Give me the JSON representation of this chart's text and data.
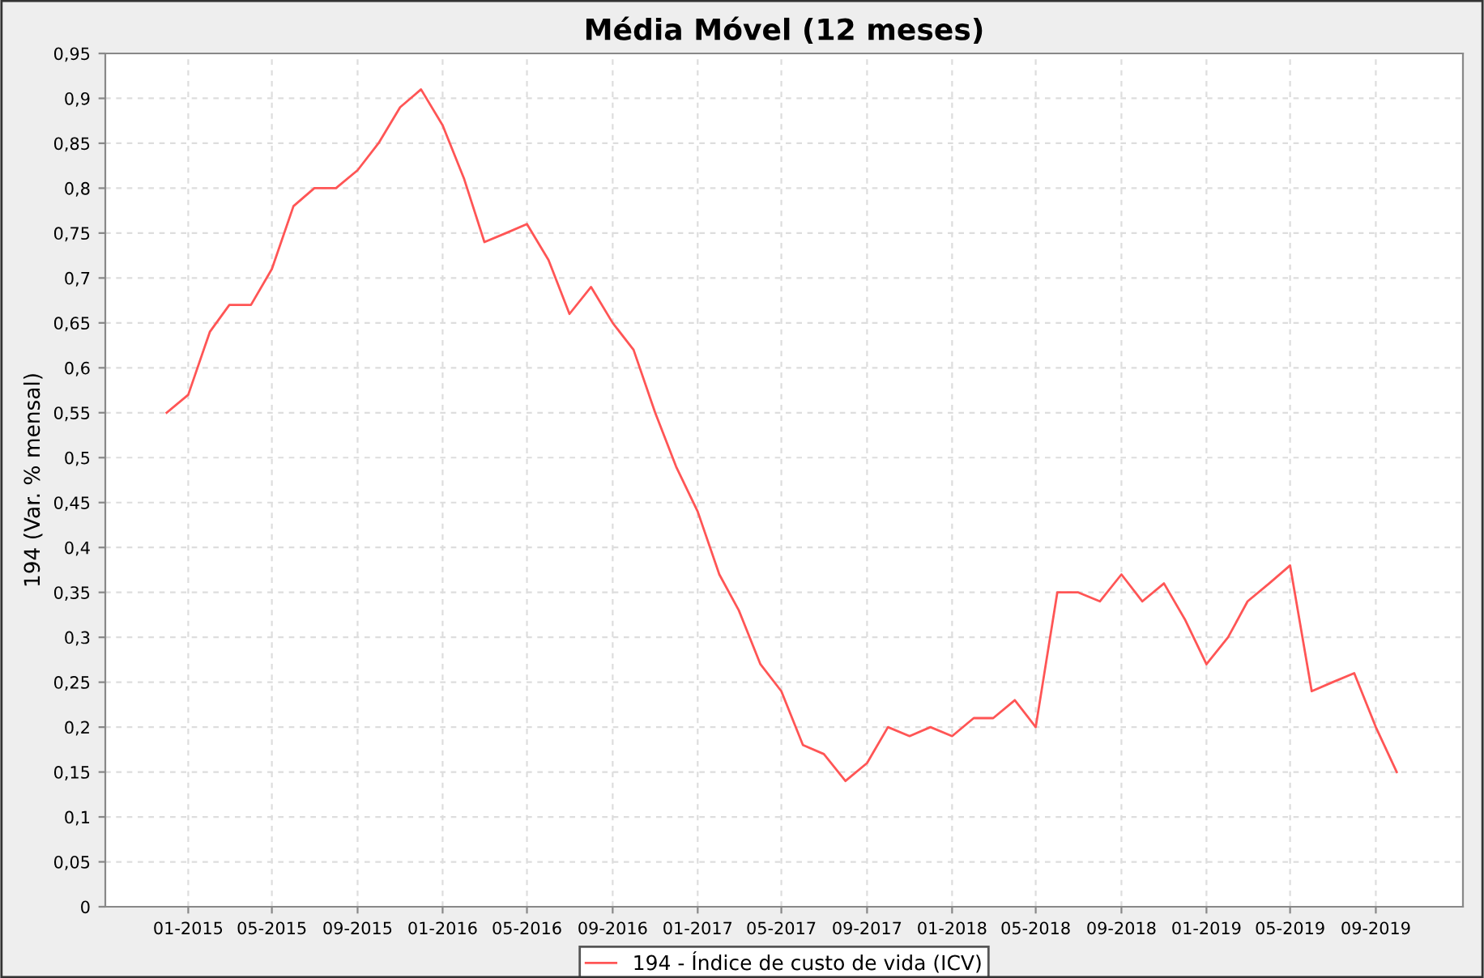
{
  "chart_data": {
    "type": "line",
    "title": "Média Móvel (12 meses)",
    "ylabel": "194 (Var. % mensal)",
    "x": [
      "2014-12",
      "2015-01",
      "2015-02",
      "2015-03",
      "2015-04",
      "2015-05",
      "2015-06",
      "2015-07",
      "2015-08",
      "2015-09",
      "2015-10",
      "2015-11",
      "2015-12",
      "2016-01",
      "2016-02",
      "2016-03",
      "2016-04",
      "2016-05",
      "2016-06",
      "2016-07",
      "2016-08",
      "2016-09",
      "2016-10",
      "2016-11",
      "2016-12",
      "2017-01",
      "2017-02",
      "2017-03",
      "2017-04",
      "2017-05",
      "2017-06",
      "2017-07",
      "2017-08",
      "2017-09",
      "2017-10",
      "2017-11",
      "2017-12",
      "2018-01",
      "2018-02",
      "2018-03",
      "2018-04",
      "2018-05",
      "2018-06",
      "2018-07",
      "2018-08",
      "2018-09",
      "2018-10",
      "2018-11",
      "2018-12",
      "2019-01",
      "2019-02",
      "2019-03",
      "2019-04",
      "2019-05",
      "2019-06",
      "2019-07",
      "2019-08",
      "2019-09",
      "2019-10"
    ],
    "series": [
      {
        "name": "194 - Índice de custo de vida (ICV)",
        "color": "#ff5555",
        "values": [
          0.55,
          0.57,
          0.64,
          0.67,
          0.67,
          0.71,
          0.78,
          0.8,
          0.8,
          0.82,
          0.85,
          0.89,
          0.91,
          0.87,
          0.81,
          0.74,
          0.75,
          0.76,
          0.72,
          0.66,
          0.69,
          0.65,
          0.62,
          0.55,
          0.49,
          0.44,
          0.37,
          0.33,
          0.27,
          0.24,
          0.18,
          0.17,
          0.14,
          0.16,
          0.2,
          0.19,
          0.2,
          0.19,
          0.21,
          0.21,
          0.23,
          0.2,
          0.35,
          0.35,
          0.34,
          0.37,
          0.34,
          0.36,
          0.32,
          0.27,
          0.3,
          0.34,
          0.36,
          0.38,
          0.24,
          0.25,
          0.26,
          0.2,
          0.15
        ]
      }
    ],
    "xlim": [
      "2014-09-04",
      "2020-01-04"
    ],
    "xticks": [
      {
        "value": "2015-01-01",
        "label": "01-2015"
      },
      {
        "value": "2015-05-01",
        "label": "05-2015"
      },
      {
        "value": "2015-09-01",
        "label": "09-2015"
      },
      {
        "value": "2016-01-01",
        "label": "01-2016"
      },
      {
        "value": "2016-05-01",
        "label": "05-2016"
      },
      {
        "value": "2016-09-01",
        "label": "09-2016"
      },
      {
        "value": "2017-01-01",
        "label": "01-2017"
      },
      {
        "value": "2017-05-01",
        "label": "05-2017"
      },
      {
        "value": "2017-09-01",
        "label": "09-2017"
      },
      {
        "value": "2018-01-01",
        "label": "01-2018"
      },
      {
        "value": "2018-05-01",
        "label": "05-2018"
      },
      {
        "value": "2018-09-01",
        "label": "09-2018"
      },
      {
        "value": "2019-01-01",
        "label": "01-2019"
      },
      {
        "value": "2019-05-01",
        "label": "05-2019"
      },
      {
        "value": "2019-09-01",
        "label": "09-2019"
      }
    ],
    "ylim": [
      0,
      0.95
    ],
    "yticks": [
      0,
      {
        "value": 0.05,
        "label": "0,05"
      },
      {
        "value": 0.1,
        "label": "0,1"
      },
      {
        "value": 0.15,
        "label": "0,15"
      },
      {
        "value": 0.2,
        "label": "0,2"
      },
      {
        "value": 0.25,
        "label": "0,25"
      },
      {
        "value": 0.3,
        "label": "0,3"
      },
      {
        "value": 0.35,
        "label": "0,35"
      },
      {
        "value": 0.4,
        "label": "0,4"
      },
      {
        "value": 0.45,
        "label": "0,45"
      },
      {
        "value": 0.5,
        "label": "0,5"
      },
      {
        "value": 0.55,
        "label": "0,55"
      },
      {
        "value": 0.6,
        "label": "0,6"
      },
      {
        "value": 0.65,
        "label": "0,65"
      },
      {
        "value": 0.7,
        "label": "0,7"
      },
      {
        "value": 0.75,
        "label": "0,75"
      },
      {
        "value": 0.8,
        "label": "0,8"
      },
      {
        "value": 0.85,
        "label": "0,85"
      },
      {
        "value": 0.9,
        "label": "0,9"
      },
      {
        "value": 0.95,
        "label": "0,95"
      }
    ],
    "grid": true,
    "legend": "bottom",
    "marker": "none",
    "line_style": "solid"
  }
}
